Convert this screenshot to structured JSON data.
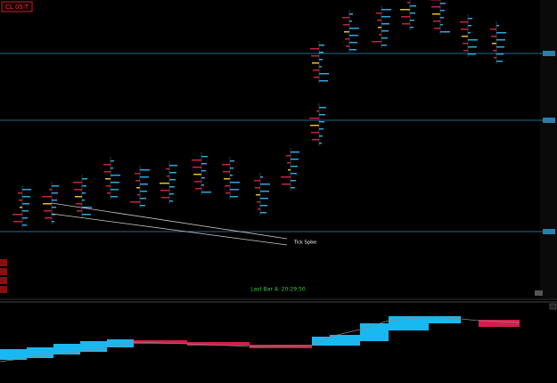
{
  "header": {
    "symbol": "CL 05-T"
  },
  "annotations": {
    "tick_spike": "Tick Spike"
  },
  "status": {
    "last_bar": "Last Bar A: 20:29:50"
  }
}
